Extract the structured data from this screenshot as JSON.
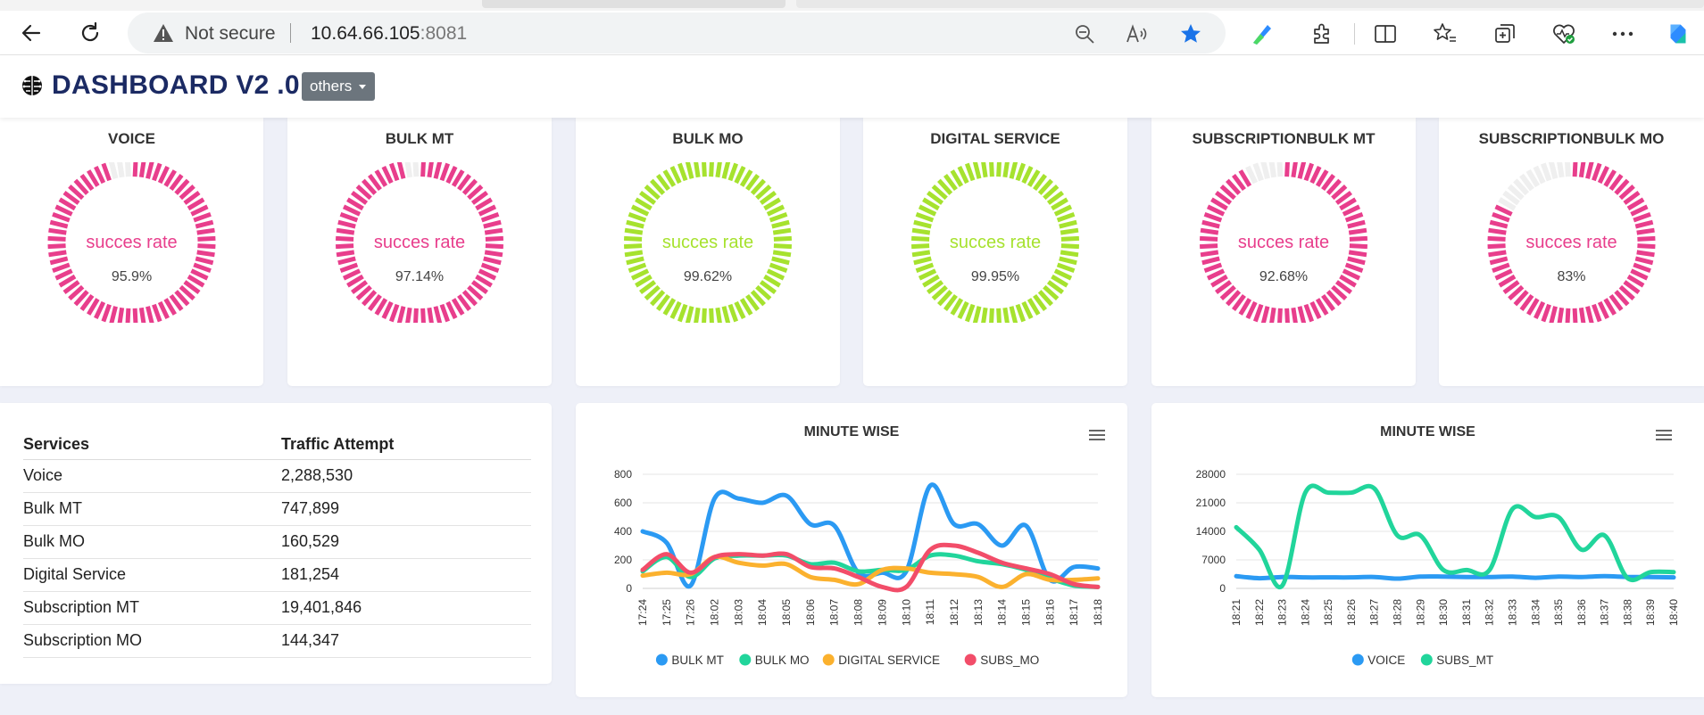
{
  "browser": {
    "security_label": "Not secure",
    "url_host": "10.64.66.105",
    "url_port": ":8081"
  },
  "header": {
    "title": "DASHBOARD V2 .0",
    "dropdown_label": "others"
  },
  "gauges": [
    {
      "title": "VOICE",
      "label": "succes rate",
      "value": "95.9%",
      "percent": 95.9,
      "color": "#e83e8c"
    },
    {
      "title": "BULK MT",
      "label": "succes rate",
      "value": "97.14%",
      "percent": 97.14,
      "color": "#e83e8c"
    },
    {
      "title": "BULK MO",
      "label": "succes rate",
      "value": "99.62%",
      "percent": 99.62,
      "color": "#a6e22e"
    },
    {
      "title": "DIGITAL SERVICE",
      "label": "succes rate",
      "value": "99.95%",
      "percent": 99.95,
      "color": "#a6e22e"
    },
    {
      "title": "SUBSCRIPTIONBULK MT",
      "label": "succes rate",
      "value": "92.68%",
      "percent": 92.68,
      "color": "#e83e8c"
    },
    {
      "title": "SUBSCRIPTIONBULK MO",
      "label": "succes rate",
      "value": "83%",
      "percent": 83,
      "color": "#e83e8c"
    }
  ],
  "traffic_table": {
    "headers": [
      "Services",
      "Traffic Attempt"
    ],
    "rows": [
      [
        "Voice",
        "2,288,530"
      ],
      [
        "Bulk MT",
        "747,899"
      ],
      [
        "Bulk MO",
        "160,529"
      ],
      [
        "Digital Service",
        "181,254"
      ],
      [
        "Subscription MT",
        "19,401,846"
      ],
      [
        "Subscription MO",
        "144,347"
      ]
    ]
  },
  "chart_data": [
    {
      "type": "line",
      "title": "MINUTE WISE",
      "xlabel": "",
      "ylabel": "",
      "categories": [
        "17:24",
        "17:25",
        "17:26",
        "18:02",
        "18:03",
        "18:04",
        "18:05",
        "18:06",
        "18:07",
        "18:08",
        "18:09",
        "18:10",
        "18:11",
        "18:12",
        "18:13",
        "18:14",
        "18:15",
        "18:16",
        "18:17",
        "18:18"
      ],
      "yticks": [
        0,
        200,
        400,
        600,
        800
      ],
      "ylim": [
        0,
        800
      ],
      "grid": true,
      "legend": "bottom",
      "series": [
        {
          "name": "BULK MT",
          "color": "#2b9af3",
          "values": [
            400,
            320,
            20,
            630,
            630,
            600,
            650,
            450,
            440,
            110,
            110,
            120,
            720,
            450,
            450,
            300,
            440,
            60,
            150,
            140
          ]
        },
        {
          "name": "BULK MO",
          "color": "#21d59b",
          "values": [
            120,
            220,
            80,
            210,
            230,
            230,
            230,
            170,
            180,
            120,
            130,
            130,
            230,
            230,
            190,
            170,
            130,
            70,
            20,
            10
          ]
        },
        {
          "name": "DIGITAL SERVICE",
          "color": "#fbb12e",
          "values": [
            90,
            110,
            100,
            220,
            180,
            160,
            170,
            80,
            60,
            30,
            130,
            140,
            110,
            100,
            80,
            10,
            100,
            60,
            60,
            70
          ]
        },
        {
          "name": "SUBS_MO",
          "color": "#f24d69",
          "values": [
            130,
            240,
            110,
            220,
            240,
            230,
            240,
            150,
            140,
            80,
            10,
            10,
            270,
            300,
            250,
            180,
            140,
            100,
            30,
            10
          ]
        }
      ]
    },
    {
      "type": "line",
      "title": "MINUTE WISE",
      "xlabel": "",
      "ylabel": "",
      "categories": [
        "18:21",
        "18:22",
        "18:23",
        "18:24",
        "18:25",
        "18:26",
        "18:27",
        "18:28",
        "18:29",
        "18:30",
        "18:31",
        "18:32",
        "18:33",
        "18:34",
        "18:35",
        "18:36",
        "18:37",
        "18:38",
        "18:39",
        "18:40"
      ],
      "yticks": [
        0,
        7000,
        14000,
        21000,
        28000
      ],
      "ylim": [
        0,
        28000
      ],
      "grid": true,
      "legend": "bottom",
      "series": [
        {
          "name": "VOICE",
          "color": "#2b9af3",
          "values": [
            3000,
            2500,
            2800,
            2700,
            2700,
            2700,
            2800,
            2400,
            2900,
            2900,
            2800,
            2800,
            2900,
            2600,
            2900,
            2800,
            3000,
            2800,
            2800,
            2700
          ]
        },
        {
          "name": "SUBS_MT",
          "color": "#21d59b",
          "values": [
            15000,
            9500,
            700,
            23500,
            23500,
            23500,
            24500,
            13000,
            13000,
            4500,
            4500,
            4500,
            19500,
            17500,
            17500,
            9500,
            13000,
            2500,
            4000,
            4000
          ]
        }
      ]
    }
  ]
}
